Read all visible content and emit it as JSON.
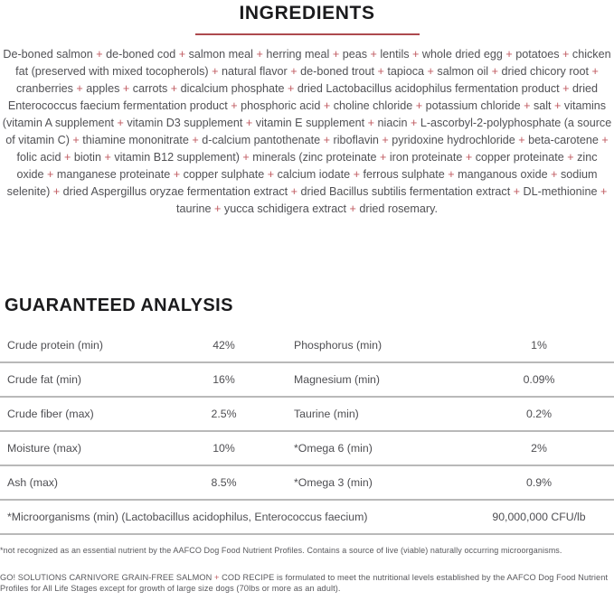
{
  "colors": {
    "accent_red_rule": "#ad494e",
    "plus_red": "#c05a60",
    "heading_black": "#1b1b1d",
    "body_gray": "#515155",
    "divider_gray": "#b9b9b9"
  },
  "ingredients_section": {
    "title": "INGREDIENTS",
    "separator": "+",
    "items": [
      "De-boned salmon",
      "de-boned cod",
      "salmon meal",
      "herring meal",
      "peas",
      "lentils",
      "whole dried egg",
      "potatoes",
      "chicken fat (preserved with mixed tocopherols)",
      "natural flavor",
      "de-boned trout",
      "tapioca",
      "salmon oil",
      "dried chicory root",
      "cranberries",
      "apples",
      "carrots",
      "dicalcium phosphate",
      "dried Lactobacillus acidophilus fermentation product",
      "dried Enterococcus faecium fermentation product",
      "phosphoric acid",
      "choline chloride",
      "potassium chloride",
      "salt",
      "vitamins (vitamin A supplement",
      "vitamin D3 supplement",
      "vitamin E supplement",
      "niacin",
      "L-ascorbyl-2-polyphosphate (a source of vitamin C)",
      "thiamine mononitrate",
      "d-calcium pantothenate",
      "riboflavin",
      "pyridoxine hydrochloride",
      "beta-carotene",
      "folic acid",
      "biotin",
      "vitamin B12 supplement)",
      "minerals (zinc proteinate",
      "iron proteinate",
      "copper proteinate",
      "zinc oxide",
      "manganese proteinate",
      "copper sulphate",
      "calcium iodate",
      "ferrous sulphate",
      "manganous oxide",
      "sodium selenite)",
      "dried Aspergillus oryzae fermentation extract",
      "dried Bacillus subtilis fermentation extract",
      "DL-methionine",
      "taurine",
      "yucca schidigera extract",
      "dried rosemary."
    ]
  },
  "analysis_section": {
    "title": "GUARANTEED ANALYSIS",
    "rows": [
      {
        "label_left": "Crude protein (min)",
        "value_left": "42%",
        "label_right": "Phosphorus (min)",
        "value_right": "1%"
      },
      {
        "label_left": "Crude fat (min)",
        "value_left": "16%",
        "label_right": "Magnesium (min)",
        "value_right": "0.09%"
      },
      {
        "label_left": "Crude fiber (max)",
        "value_left": "2.5%",
        "label_right": "Taurine (min)",
        "value_right": "0.2%"
      },
      {
        "label_left": "Moisture (max)",
        "value_left": "10%",
        "label_right": "*Omega 6 (min)",
        "value_right": "2%"
      },
      {
        "label_left": "Ash (max)",
        "value_left": "8.5%",
        "label_right": "*Omega 3 (min)",
        "value_right": "0.9%"
      }
    ],
    "full_width_row": {
      "label": "*Microorganisms (min) (Lactobacillus acidophilus, Enterococcus faecium)",
      "value": "90,000,000 CFU/lb"
    }
  },
  "footnotes": {
    "asterisk_note": "*not recognized as an essential nutrient by the AAFCO Dog Food Nutrient Profiles. Contains a source of live (viable) naturally occurring microorganisms.",
    "aafco_statement": {
      "before_plus": "GO! SOLUTIONS CARNIVORE GRAIN-FREE SALMON",
      "plus": "+",
      "after_plus": "COD RECIPE  is formulated to meet the nutritional levels established by the AAFCO Dog Food Nutrient Profiles for All Life Stages except for growth of large size dogs (70lbs or more as an adult)."
    }
  }
}
